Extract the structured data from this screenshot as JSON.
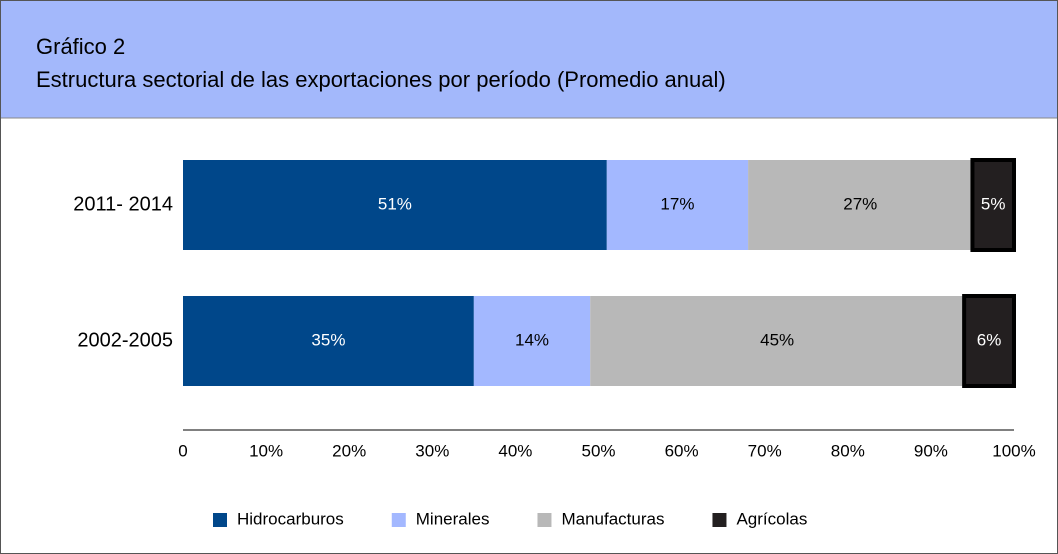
{
  "chart_data": {
    "type": "stacked-barh",
    "title": "Gráfico 2",
    "subtitle": "Estructura sectorial de las exportaciones por período (Promedio anual)",
    "categories": [
      "2011- 2014",
      "2002-2005"
    ],
    "series": [
      {
        "name": "Hidrocarburos",
        "color": "#00478a",
        "values": [
          51,
          35
        ],
        "value_labels": [
          "51%",
          "35%"
        ]
      },
      {
        "name": "Minerales",
        "color": "#a3b8ff",
        "values": [
          17,
          14
        ],
        "value_labels": [
          "17%",
          "14%"
        ]
      },
      {
        "name": "Manufacturas",
        "color": "#b8b8b8",
        "values": [
          27,
          45
        ],
        "value_labels": [
          "27%",
          "45%"
        ]
      },
      {
        "name": "Agrícolas",
        "color": "#231f20",
        "values": [
          5,
          6
        ],
        "value_labels": [
          "5%",
          "6%"
        ]
      }
    ],
    "xlim": [
      0,
      100
    ],
    "xticks": [
      0,
      {
        "value": 10,
        "label": "10%"
      },
      {
        "value": 20,
        "label": "20%"
      },
      {
        "value": 30,
        "label": "30%"
      },
      {
        "value": 40,
        "label": "40%"
      },
      {
        "value": 50,
        "label": "50%"
      },
      {
        "value": 60,
        "label": "60%"
      },
      {
        "value": 70,
        "label": "70%"
      },
      {
        "value": 80,
        "label": "80%"
      },
      {
        "value": 90,
        "label": "90%"
      },
      {
        "value": 100,
        "label": "100%"
      }
    ],
    "grid": false,
    "legend": "bottom"
  }
}
